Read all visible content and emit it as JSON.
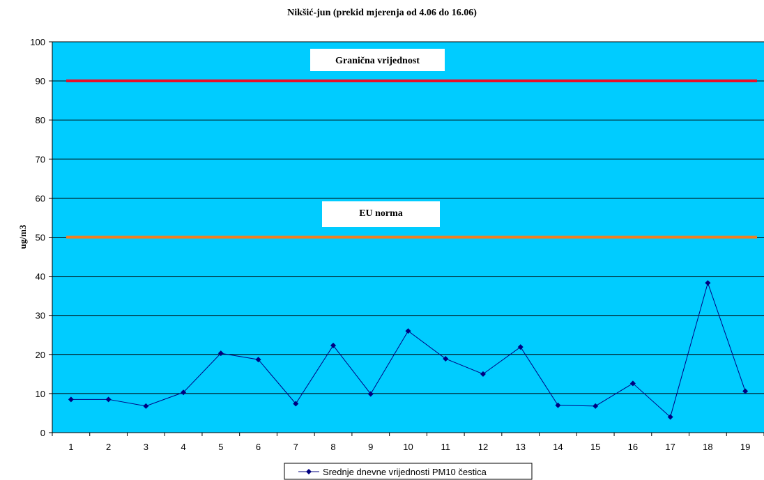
{
  "chart_data": {
    "type": "line",
    "title": "Nikšić-jun (prekid mjerenja od 4.06 do 16.06)",
    "xlabel": "",
    "ylabel": "ug/m3",
    "x": [
      1,
      2,
      3,
      4,
      5,
      6,
      7,
      8,
      9,
      10,
      11,
      12,
      13,
      14,
      15,
      16,
      17,
      18,
      19
    ],
    "ylim": [
      0,
      100
    ],
    "yticks": [
      0,
      10,
      20,
      30,
      40,
      50,
      60,
      70,
      80,
      90,
      100
    ],
    "grid": true,
    "legend_position": "bottom",
    "series": [
      {
        "name": "Srednje dnevne vrijednosti PM10 čestica",
        "values": [
          8.5,
          8.5,
          6.8,
          10.3,
          20.3,
          18.7,
          7.4,
          22.3,
          9.9,
          26.0,
          18.9,
          15.0,
          21.9,
          7.0,
          6.8,
          12.6,
          4.0,
          38.3,
          10.6
        ],
        "color": "#000080"
      }
    ],
    "reference_lines": [
      {
        "label": "Granična vrijednost",
        "value": 90,
        "color": "#e8102a"
      },
      {
        "label": "EU norma",
        "value": 50,
        "color": "#f07f22"
      }
    ],
    "colors": {
      "plot_background": "#00ccff",
      "gridline": "#000000"
    }
  }
}
